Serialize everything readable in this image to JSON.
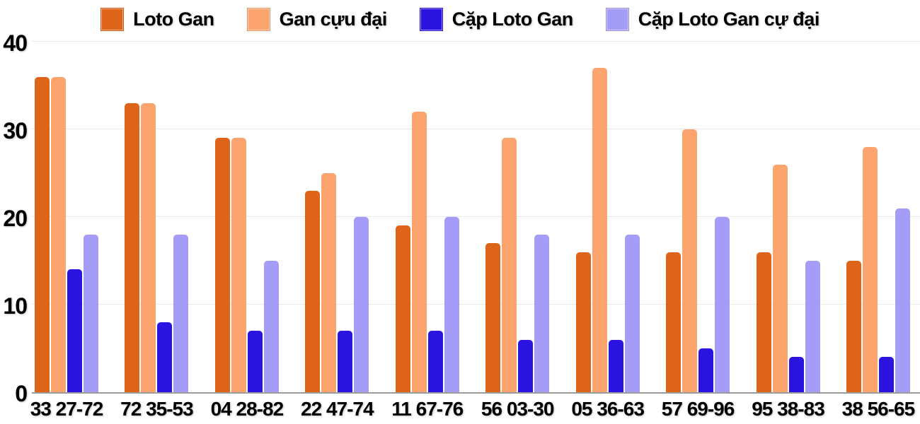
{
  "legend": {
    "items": [
      {
        "label": "Loto Gan",
        "color": "#DD6418"
      },
      {
        "label": "Gan cựu đại",
        "color": "#FBA46D"
      },
      {
        "label": "Cặp Loto Gan",
        "color": "#2B14DF"
      },
      {
        "label": "Cặp Loto Gan cự đại",
        "color": "#A49CF6"
      }
    ]
  },
  "chart_data": {
    "type": "bar",
    "title": "",
    "xlabel": "",
    "ylabel": "",
    "categories": [
      "33 27-72",
      "72 35-53",
      "04 28-82",
      "22 47-74",
      "11 67-76",
      "56 03-30",
      "05 36-63",
      "57 69-96",
      "95 38-83",
      "38 56-65"
    ],
    "series": [
      {
        "name": "Loto Gan",
        "color": "#DD6418",
        "values": [
          36,
          33,
          29,
          23,
          19,
          17,
          16,
          16,
          16,
          15
        ]
      },
      {
        "name": "Gan cựu đại",
        "color": "#FBA46D",
        "values": [
          36,
          33,
          29,
          25,
          32,
          29,
          37,
          30,
          26,
          28
        ]
      },
      {
        "name": "Cặp Loto Gan",
        "color": "#2B14DF",
        "values": [
          14,
          8,
          7,
          7,
          7,
          6,
          6,
          5,
          4,
          4
        ]
      },
      {
        "name": "Cặp Loto Gan cự đại",
        "color": "#A49CF6",
        "values": [
          18,
          18,
          15,
          20,
          20,
          18,
          18,
          20,
          15,
          21
        ]
      }
    ],
    "ylim": [
      0,
      40
    ],
    "yticks": [
      0,
      10,
      20,
      30,
      40
    ],
    "grid": true,
    "legend_position": "top",
    "colors": {
      "gridline": "#e8e8e8",
      "baseline": "#9b9b9b",
      "text": "#000000",
      "background": "#ffffff"
    }
  }
}
